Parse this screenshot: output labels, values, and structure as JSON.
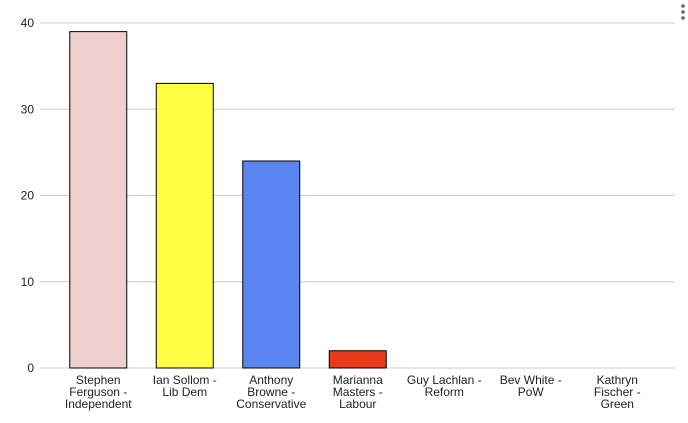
{
  "chart_data": {
    "type": "bar",
    "categories": [
      "Stephen Ferguson - Independent",
      "Ian Sollom - Lib Dem",
      "Anthony Browne - Conservative",
      "Marianna Masters - Labour",
      "Guy Lachlan - Reform",
      "Bev White - PoW",
      "Kathryn Fischer - Green"
    ],
    "values": [
      39,
      33,
      24,
      2,
      0,
      0,
      0
    ],
    "colors": [
      "#eecfcc",
      "#ffff44",
      "#5b85f0",
      "#e8391a",
      "#999999",
      "#999999",
      "#999999"
    ],
    "ylim": [
      0,
      40
    ],
    "yticks": [
      0,
      10,
      20,
      30,
      40
    ],
    "grid": true
  }
}
